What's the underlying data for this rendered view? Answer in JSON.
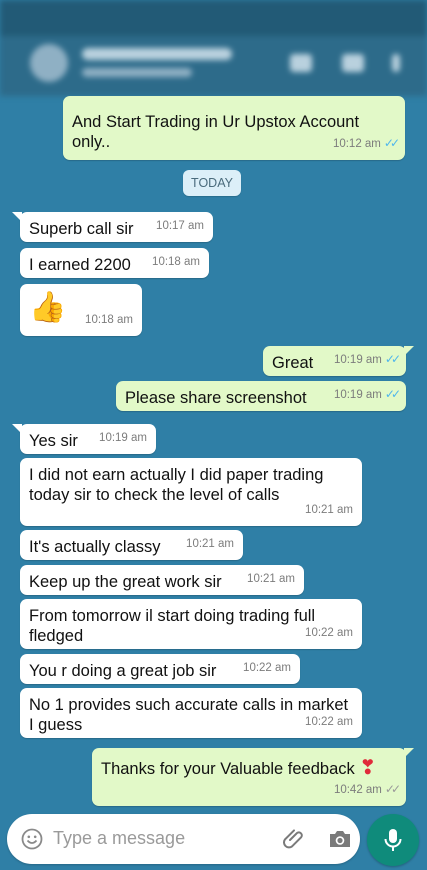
{
  "header": {
    "contact_name": "",
    "contact_status": ""
  },
  "day_separator": "TODAY",
  "messages": [
    {
      "text": "And Start Trading in Ur Upstox Account only..",
      "time": "10:12 am",
      "ticks": "✓✓"
    },
    {
      "text": "Superb call sir",
      "time": "10:17 am"
    },
    {
      "text": "I earned 2200",
      "time": "10:18 am"
    },
    {
      "text": "👍",
      "time": "10:18 am"
    },
    {
      "text": "Great",
      "time": "10:19 am",
      "ticks": "✓✓"
    },
    {
      "text": "Please share screenshot",
      "time": "10:19 am",
      "ticks": "✓✓"
    },
    {
      "text": "Yes sir",
      "time": "10:19 am"
    },
    {
      "text": "I did not earn actually I did paper trading today sir to check the level of calls",
      "time": "10:21 am"
    },
    {
      "text": "It's actually classy",
      "time": "10:21 am"
    },
    {
      "text": "Keep up the great work sir",
      "time": "10:21 am"
    },
    {
      "text": "From tomorrow il start doing trading full fledged",
      "time": "10:22 am"
    },
    {
      "text": "You r doing a great job sir",
      "time": "10:22 am"
    },
    {
      "text": "No 1 provides such accurate calls in market I guess",
      "time": "10:22 am"
    },
    {
      "text": "Thanks for your Valuable feedback",
      "emoji": "❣",
      "time": "10:42 am",
      "ticks": "✓✓"
    }
  ],
  "composer": {
    "placeholder": "Type a message"
  },
  "colors": {
    "chat_bg": "#2f7fa6",
    "outgoing": "#e2f9c8",
    "incoming": "#ffffff",
    "accent": "#0f8b7b",
    "read_ticks": "#4fb6ec"
  }
}
